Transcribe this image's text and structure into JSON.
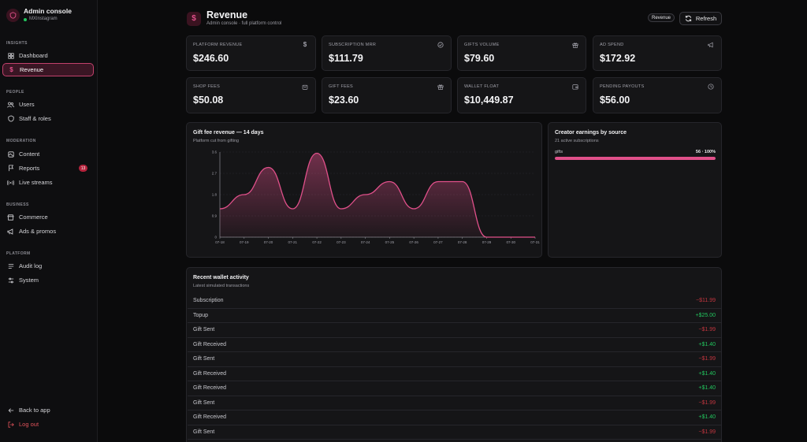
{
  "app": {
    "title": "Admin console",
    "workspace": "MXInstagram"
  },
  "sidebar": {
    "sections": [
      {
        "label": "INSIGHTS",
        "items": [
          {
            "label": "Dashboard",
            "icon": "grid-icon"
          },
          {
            "label": "Revenue",
            "icon": "dollar-icon",
            "active": true
          }
        ]
      },
      {
        "label": "PEOPLE",
        "items": [
          {
            "label": "Users",
            "icon": "users-icon"
          },
          {
            "label": "Staff & roles",
            "icon": "shield-icon"
          }
        ]
      },
      {
        "label": "MODERATION",
        "items": [
          {
            "label": "Content",
            "icon": "content-icon"
          },
          {
            "label": "Reports",
            "icon": "flag-icon",
            "badge": "13"
          },
          {
            "label": "Live streams",
            "icon": "broadcast-icon"
          }
        ]
      },
      {
        "label": "BUSINESS",
        "items": [
          {
            "label": "Commerce",
            "icon": "store-icon"
          },
          {
            "label": "Ads & promos",
            "icon": "megaphone-icon"
          }
        ]
      },
      {
        "label": "PLATFORM",
        "items": [
          {
            "label": "Audit log",
            "icon": "log-icon"
          },
          {
            "label": "System",
            "icon": "sliders-icon"
          }
        ]
      }
    ],
    "back_label": "Back to app",
    "logout_label": "Log out"
  },
  "header": {
    "title": "Revenue",
    "subtitle": "Admin console · full platform control",
    "pill_label": "Revenue",
    "refresh_label": "Refresh"
  },
  "stats": [
    {
      "label": "PLATFORM REVENUE",
      "value": "$246.60",
      "icon": "dollar-icon"
    },
    {
      "label": "SUBSCRIPTION MRR",
      "value": "$111.79",
      "icon": "check-circle-icon"
    },
    {
      "label": "GIFTS VOLUME",
      "value": "$79.60",
      "icon": "gift-icon"
    },
    {
      "label": "AD SPEND",
      "value": "$172.92",
      "icon": "megaphone-icon"
    },
    {
      "label": "SHOP FEES",
      "value": "$50.08",
      "icon": "bag-icon"
    },
    {
      "label": "GIFT FEES",
      "value": "$23.60",
      "icon": "gift-icon"
    },
    {
      "label": "WALLET FLOAT",
      "value": "$10,449.87",
      "icon": "wallet-icon"
    },
    {
      "label": "PENDING PAYOUTS",
      "value": "$56.00",
      "icon": "clock-icon"
    }
  ],
  "chart_data": {
    "type": "area",
    "title": "Gift fee revenue — 14 days",
    "subtitle": "Platform cut from gifting",
    "x": [
      "07-18",
      "07-19",
      "07-20",
      "07-21",
      "07-22",
      "07-23",
      "07-24",
      "07-25",
      "07-26",
      "07-27",
      "07-28",
      "07-29",
      "07-30",
      "07-31"
    ],
    "y_ticks": [
      {
        "value": 0,
        "label": "0"
      },
      {
        "value": 0.9,
        "label": "0.9"
      },
      {
        "value": 1.8,
        "label": "1.8"
      },
      {
        "value": 2.7,
        "label": "2.7"
      },
      {
        "value": 3.6,
        "label": "3.6"
      }
    ],
    "ylim": [
      0,
      3.6
    ],
    "series": [
      {
        "values": [
          1.2,
          1.8,
          2.95,
          1.2,
          3.55,
          1.2,
          1.8,
          2.35,
          1.2,
          2.35,
          2.35,
          0,
          0,
          0
        ]
      }
    ],
    "color": "#e0508a",
    "grid": true
  },
  "sources": {
    "title": "Creator earnings by source",
    "subtitle": "21 active subscriptions",
    "items": [
      {
        "name": "gifts",
        "value": "56 · 100%",
        "fraction": 1.0
      }
    ]
  },
  "wallet": {
    "title": "Recent wallet activity",
    "subtitle": "Latest simulated transactions",
    "rows": [
      {
        "type": "Subscription",
        "amount": "−$11.99",
        "positive": false
      },
      {
        "type": "Topup",
        "amount": "+$25.00",
        "positive": true
      },
      {
        "type": "Gift Sent",
        "amount": "−$1.99",
        "positive": false
      },
      {
        "type": "Gift Received",
        "amount": "+$1.40",
        "positive": true
      },
      {
        "type": "Gift Sent",
        "amount": "−$1.99",
        "positive": false
      },
      {
        "type": "Gift Received",
        "amount": "+$1.40",
        "positive": true
      },
      {
        "type": "Gift Received",
        "amount": "+$1.40",
        "positive": true
      },
      {
        "type": "Gift Sent",
        "amount": "−$1.99",
        "positive": false
      },
      {
        "type": "Gift Received",
        "amount": "+$1.40",
        "positive": true
      },
      {
        "type": "Gift Sent",
        "amount": "−$1.99",
        "positive": false
      }
    ]
  }
}
